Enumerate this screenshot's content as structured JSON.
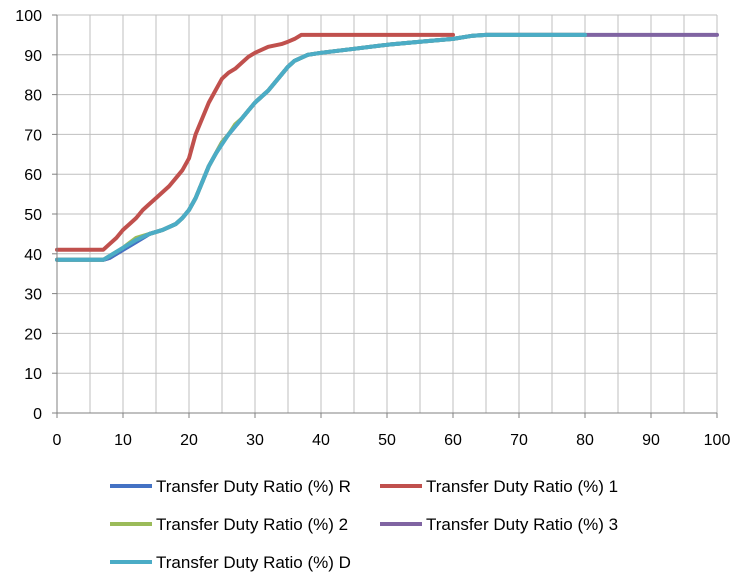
{
  "chart_data": {
    "type": "line",
    "title": "",
    "xlabel": "",
    "ylabel": "",
    "xlim": [
      0,
      100
    ],
    "ylim": [
      0,
      100
    ],
    "x_ticks": [
      0,
      10,
      20,
      30,
      40,
      50,
      60,
      70,
      80,
      90,
      100
    ],
    "y_ticks": [
      0,
      10,
      20,
      30,
      40,
      50,
      60,
      70,
      80,
      90,
      100
    ],
    "grid": true,
    "legend_position": "bottom",
    "series": [
      {
        "name": "Transfer Duty Ratio (%) R",
        "color": "#4472C4",
        "points": [
          [
            0,
            38.5
          ],
          [
            7,
            38.5
          ],
          [
            8,
            39
          ],
          [
            10,
            41
          ],
          [
            12,
            43
          ],
          [
            14,
            45
          ],
          [
            16,
            46
          ],
          [
            18,
            47.5
          ],
          [
            19,
            49
          ],
          [
            20,
            51
          ],
          [
            21,
            54
          ],
          [
            22,
            58
          ],
          [
            23,
            62
          ],
          [
            24,
            65
          ],
          [
            25,
            68
          ],
          [
            26,
            70
          ],
          [
            27,
            72
          ],
          [
            28,
            74
          ],
          [
            29,
            76
          ],
          [
            30,
            78
          ],
          [
            32,
            81
          ],
          [
            34,
            85
          ],
          [
            35,
            87
          ],
          [
            36,
            88.5
          ],
          [
            38,
            90
          ],
          [
            40,
            90.5
          ],
          [
            45,
            91.5
          ],
          [
            50,
            92.5
          ],
          [
            55,
            93.3
          ],
          [
            60,
            94
          ],
          [
            63,
            94.8
          ],
          [
            65,
            95
          ],
          [
            70,
            95
          ],
          [
            75,
            95
          ],
          [
            80,
            95
          ]
        ]
      },
      {
        "name": "Transfer Duty Ratio (%) 1",
        "color": "#C0504D",
        "points": [
          [
            0,
            41
          ],
          [
            7,
            41
          ],
          [
            8,
            42.5
          ],
          [
            9,
            44
          ],
          [
            10,
            46
          ],
          [
            11,
            47.5
          ],
          [
            12,
            49
          ],
          [
            13,
            51
          ],
          [
            14,
            52.5
          ],
          [
            15,
            54
          ],
          [
            16,
            55.5
          ],
          [
            17,
            57
          ],
          [
            18,
            59
          ],
          [
            19,
            61
          ],
          [
            20,
            64
          ],
          [
            21,
            70
          ],
          [
            22,
            74
          ],
          [
            23,
            78
          ],
          [
            24,
            81
          ],
          [
            25,
            84
          ],
          [
            26,
            85.5
          ],
          [
            27,
            86.5
          ],
          [
            28,
            88
          ],
          [
            29,
            89.5
          ],
          [
            30,
            90.5
          ],
          [
            32,
            92
          ],
          [
            34,
            92.7
          ],
          [
            35,
            93.3
          ],
          [
            36,
            94
          ],
          [
            37,
            95
          ],
          [
            40,
            95
          ],
          [
            50,
            95
          ],
          [
            60,
            95
          ]
        ]
      },
      {
        "name": "Transfer Duty Ratio (%) 2",
        "color": "#9BBB59",
        "points": [
          [
            0,
            38.5
          ],
          [
            7,
            38.5
          ],
          [
            8,
            39.5
          ],
          [
            10,
            41.5
          ],
          [
            12,
            44
          ],
          [
            14,
            45
          ],
          [
            16,
            46
          ],
          [
            18,
            47.5
          ],
          [
            19,
            49
          ],
          [
            20,
            51
          ],
          [
            21,
            54
          ],
          [
            22,
            58
          ],
          [
            23,
            62
          ],
          [
            24,
            65
          ],
          [
            25,
            68
          ],
          [
            26,
            70
          ],
          [
            27,
            72.5
          ],
          [
            28,
            74
          ],
          [
            29,
            76
          ],
          [
            30,
            78
          ],
          [
            32,
            81
          ],
          [
            34,
            85
          ],
          [
            35,
            87
          ],
          [
            36,
            88.5
          ],
          [
            38,
            90
          ],
          [
            40,
            90.5
          ],
          [
            45,
            91.5
          ],
          [
            50,
            92.5
          ],
          [
            55,
            93.3
          ],
          [
            60,
            94
          ],
          [
            63,
            94.8
          ],
          [
            65,
            95
          ],
          [
            70,
            95
          ],
          [
            75,
            95
          ],
          [
            80,
            95
          ]
        ]
      },
      {
        "name": "Transfer Duty Ratio (%) 3",
        "color": "#8064A2",
        "points": [
          [
            0,
            38.5
          ],
          [
            7,
            38.5
          ],
          [
            8,
            39
          ],
          [
            10,
            41
          ],
          [
            12,
            43
          ],
          [
            14,
            45
          ],
          [
            16,
            46
          ],
          [
            18,
            47.5
          ],
          [
            19,
            49
          ],
          [
            20,
            51
          ],
          [
            21,
            54
          ],
          [
            22,
            58
          ],
          [
            23,
            62
          ],
          [
            24,
            65
          ],
          [
            25,
            68
          ],
          [
            26,
            70
          ],
          [
            27,
            72
          ],
          [
            28,
            74
          ],
          [
            29,
            76
          ],
          [
            30,
            78
          ],
          [
            32,
            81
          ],
          [
            34,
            85
          ],
          [
            35,
            87
          ],
          [
            36,
            88.5
          ],
          [
            38,
            90
          ],
          [
            40,
            90.5
          ],
          [
            45,
            91.5
          ],
          [
            50,
            92.5
          ],
          [
            55,
            93.3
          ],
          [
            60,
            94
          ],
          [
            63,
            94.8
          ],
          [
            65,
            95
          ],
          [
            70,
            95
          ],
          [
            80,
            95
          ],
          [
            90,
            95
          ],
          [
            100,
            95
          ]
        ]
      },
      {
        "name": "Transfer Duty Ratio (%) D",
        "color": "#4BACC6",
        "points": [
          [
            0,
            38.5
          ],
          [
            7,
            38.5
          ],
          [
            8,
            39.5
          ],
          [
            10,
            41.5
          ],
          [
            12,
            43.5
          ],
          [
            14,
            45
          ],
          [
            16,
            46
          ],
          [
            18,
            47.5
          ],
          [
            19,
            49
          ],
          [
            20,
            51
          ],
          [
            21,
            54
          ],
          [
            22,
            58
          ],
          [
            23,
            62
          ],
          [
            24,
            65
          ],
          [
            25,
            67.5
          ],
          [
            26,
            70
          ],
          [
            27,
            72
          ],
          [
            28,
            74
          ],
          [
            29,
            76
          ],
          [
            30,
            78
          ],
          [
            32,
            81
          ],
          [
            34,
            85
          ],
          [
            35,
            87
          ],
          [
            36,
            88.5
          ],
          [
            38,
            90
          ],
          [
            40,
            90.5
          ],
          [
            45,
            91.5
          ],
          [
            50,
            92.5
          ],
          [
            55,
            93.3
          ],
          [
            60,
            94
          ],
          [
            63,
            94.8
          ],
          [
            65,
            95
          ],
          [
            70,
            95
          ],
          [
            75,
            95
          ],
          [
            80,
            95
          ]
        ]
      }
    ]
  }
}
